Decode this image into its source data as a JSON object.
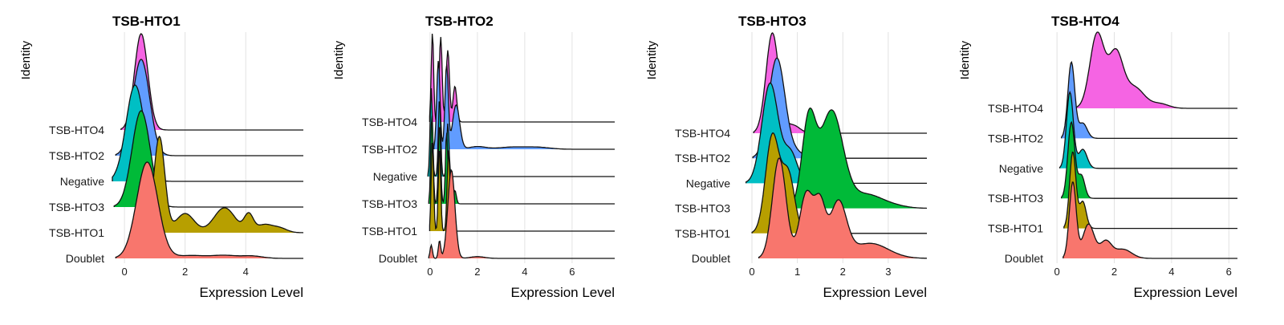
{
  "chart_data": [
    {
      "type": "ridgeline",
      "title": "TSB-HTO1",
      "xlabel": "Expression Level",
      "ylabel": "Identity",
      "xlim": [
        -0.4,
        5.9
      ],
      "xticks": [
        0,
        2,
        4
      ],
      "grid": "vertical",
      "legend": "none",
      "categories": [
        "TSB-HTO4",
        "TSB-HTO2",
        "Negative",
        "TSB-HTO3",
        "TSB-HTO1",
        "Doublet"
      ],
      "series": [
        {
          "label": "TSB-HTO4",
          "color": "#F564E3",
          "modes": [
            [
              0.55,
              0.22,
              1.0
            ]
          ]
        },
        {
          "label": "TSB-HTO2",
          "color": "#619CFF",
          "modes": [
            [
              0.55,
              0.28,
              1.0
            ]
          ]
        },
        {
          "label": "Negative",
          "color": "#00BFC4",
          "modes": [
            [
              0.35,
              0.3,
              1.0
            ]
          ]
        },
        {
          "label": "TSB-HTO3",
          "color": "#00BA38",
          "modes": [
            [
              0.55,
              0.3,
              1.0
            ]
          ]
        },
        {
          "label": "TSB-HTO1",
          "color": "#B79F00",
          "modes": [
            [
              1.15,
              0.18,
              1.0
            ],
            [
              2.0,
              0.3,
              0.2
            ],
            [
              3.3,
              0.35,
              0.26
            ],
            [
              4.1,
              0.15,
              0.18
            ],
            [
              4.6,
              0.25,
              0.08
            ],
            [
              5.1,
              0.25,
              0.05
            ]
          ]
        },
        {
          "label": "Doublet",
          "color": "#F8766D",
          "modes": [
            [
              0.75,
              0.35,
              1.0
            ],
            [
              2.2,
              0.5,
              0.03
            ],
            [
              3.3,
              0.4,
              0.03
            ],
            [
              4.2,
              0.35,
              0.025
            ]
          ]
        }
      ]
    },
    {
      "type": "ridgeline",
      "title": "TSB-HTO2",
      "xlabel": "Expression Level",
      "ylabel": "Identity",
      "xlim": [
        -0.2,
        7.8
      ],
      "xticks": [
        0,
        2,
        4,
        6
      ],
      "grid": "vertical",
      "legend": "none",
      "categories": [
        "TSB-HTO4",
        "TSB-HTO2",
        "Negative",
        "TSB-HTO3",
        "TSB-HTO1",
        "Doublet"
      ],
      "series": [
        {
          "label": "TSB-HTO4",
          "color": "#F564E3",
          "modes": [
            [
              0.1,
              0.05,
              1.0
            ],
            [
              0.45,
              0.06,
              0.95
            ],
            [
              0.75,
              0.07,
              0.8
            ],
            [
              1.05,
              0.08,
              0.4
            ]
          ]
        },
        {
          "label": "TSB-HTO2",
          "color": "#619CFF",
          "modes": [
            [
              0.35,
              0.07,
              1.0
            ],
            [
              0.7,
              0.07,
              0.95
            ],
            [
              1.1,
              0.15,
              0.5
            ],
            [
              2.0,
              0.35,
              0.03
            ],
            [
              3.5,
              0.6,
              0.025
            ],
            [
              4.6,
              0.5,
              0.02
            ]
          ]
        },
        {
          "label": "Negative",
          "color": "#00BFC4",
          "modes": [
            [
              0.05,
              0.05,
              1.0
            ],
            [
              0.4,
              0.05,
              0.9
            ],
            [
              0.75,
              0.05,
              0.6
            ]
          ]
        },
        {
          "label": "TSB-HTO3",
          "color": "#00BA38",
          "modes": [
            [
              0.08,
              0.05,
              1.0
            ],
            [
              0.4,
              0.05,
              0.9
            ],
            [
              0.7,
              0.05,
              0.8
            ],
            [
              1.05,
              0.06,
              0.15
            ]
          ]
        },
        {
          "label": "TSB-HTO1",
          "color": "#B79F00",
          "modes": [
            [
              0.1,
              0.05,
              1.0
            ],
            [
              0.4,
              0.05,
              0.95
            ],
            [
              0.78,
              0.06,
              0.9
            ]
          ]
        },
        {
          "label": "Doublet",
          "color": "#F8766D",
          "modes": [
            [
              0.05,
              0.05,
              0.15
            ],
            [
              0.4,
              0.05,
              0.2
            ],
            [
              0.9,
              0.15,
              1.0
            ],
            [
              2.0,
              0.3,
              0.02
            ]
          ]
        }
      ]
    },
    {
      "type": "ridgeline",
      "title": "TSB-HTO3",
      "xlabel": "Expression Level",
      "ylabel": "Identity",
      "xlim": [
        -0.3,
        3.85
      ],
      "xticks": [
        0,
        1,
        2,
        3
      ],
      "grid": "vertical",
      "legend": "none",
      "categories": [
        "TSB-HTO4",
        "TSB-HTO2",
        "Negative",
        "TSB-HTO3",
        "TSB-HTO1",
        "Doublet"
      ],
      "series": [
        {
          "label": "TSB-HTO4",
          "color": "#F564E3",
          "modes": [
            [
              0.45,
              0.14,
              1.0
            ],
            [
              0.9,
              0.15,
              0.08
            ]
          ]
        },
        {
          "label": "TSB-HTO2",
          "color": "#619CFF",
          "modes": [
            [
              0.55,
              0.18,
              1.0
            ],
            [
              1.0,
              0.15,
              0.05
            ]
          ]
        },
        {
          "label": "Negative",
          "color": "#00BFC4",
          "modes": [
            [
              0.4,
              0.18,
              1.0
            ],
            [
              0.85,
              0.15,
              0.3
            ]
          ]
        },
        {
          "label": "TSB-HTO3",
          "color": "#00BA38",
          "modes": [
            [
              1.25,
              0.15,
              0.75
            ],
            [
              1.75,
              0.25,
              0.85
            ],
            [
              2.5,
              0.35,
              0.12
            ],
            [
              3.1,
              0.3,
              0.02
            ]
          ]
        },
        {
          "label": "TSB-HTO1",
          "color": "#B79F00",
          "modes": [
            [
              0.45,
              0.15,
              1.0
            ],
            [
              0.8,
              0.14,
              0.6
            ]
          ]
        },
        {
          "label": "Doublet",
          "color": "#F8766D",
          "modes": [
            [
              0.6,
              0.15,
              1.0
            ],
            [
              1.2,
              0.15,
              0.65
            ],
            [
              1.5,
              0.12,
              0.5
            ],
            [
              1.9,
              0.18,
              0.55
            ],
            [
              2.6,
              0.4,
              0.15
            ]
          ]
        }
      ]
    },
    {
      "type": "ridgeline",
      "title": "TSB-HTO4",
      "xlabel": "Expression Level",
      "ylabel": "Identity",
      "xlim": [
        -0.2,
        6.3
      ],
      "xticks": [
        0,
        2,
        4,
        6
      ],
      "grid": "vertical",
      "legend": "none",
      "categories": [
        "TSB-HTO4",
        "TSB-HTO2",
        "Negative",
        "TSB-HTO3",
        "TSB-HTO1",
        "Doublet"
      ],
      "series": [
        {
          "label": "TSB-HTO4",
          "color": "#F564E3",
          "modes": [
            [
              1.4,
              0.25,
              1.0
            ],
            [
              2.05,
              0.25,
              0.72
            ],
            [
              2.7,
              0.35,
              0.28
            ],
            [
              3.6,
              0.3,
              0.06
            ]
          ]
        },
        {
          "label": "TSB-HTO2",
          "color": "#619CFF",
          "modes": [
            [
              0.5,
              0.12,
              1.0
            ],
            [
              0.9,
              0.15,
              0.2
            ]
          ]
        },
        {
          "label": "Negative",
          "color": "#00BFC4",
          "modes": [
            [
              0.45,
              0.12,
              1.0
            ],
            [
              0.9,
              0.15,
              0.25
            ]
          ]
        },
        {
          "label": "TSB-HTO3",
          "color": "#00BA38",
          "modes": [
            [
              0.5,
              0.12,
              1.0
            ],
            [
              0.85,
              0.12,
              0.3
            ]
          ]
        },
        {
          "label": "TSB-HTO1",
          "color": "#B79F00",
          "modes": [
            [
              0.55,
              0.11,
              1.0
            ],
            [
              0.9,
              0.12,
              0.35
            ]
          ]
        },
        {
          "label": "Doublet",
          "color": "#F8766D",
          "modes": [
            [
              0.55,
              0.12,
              1.0
            ],
            [
              1.1,
              0.2,
              0.45
            ],
            [
              1.7,
              0.2,
              0.22
            ],
            [
              2.3,
              0.3,
              0.12
            ]
          ]
        }
      ]
    }
  ]
}
